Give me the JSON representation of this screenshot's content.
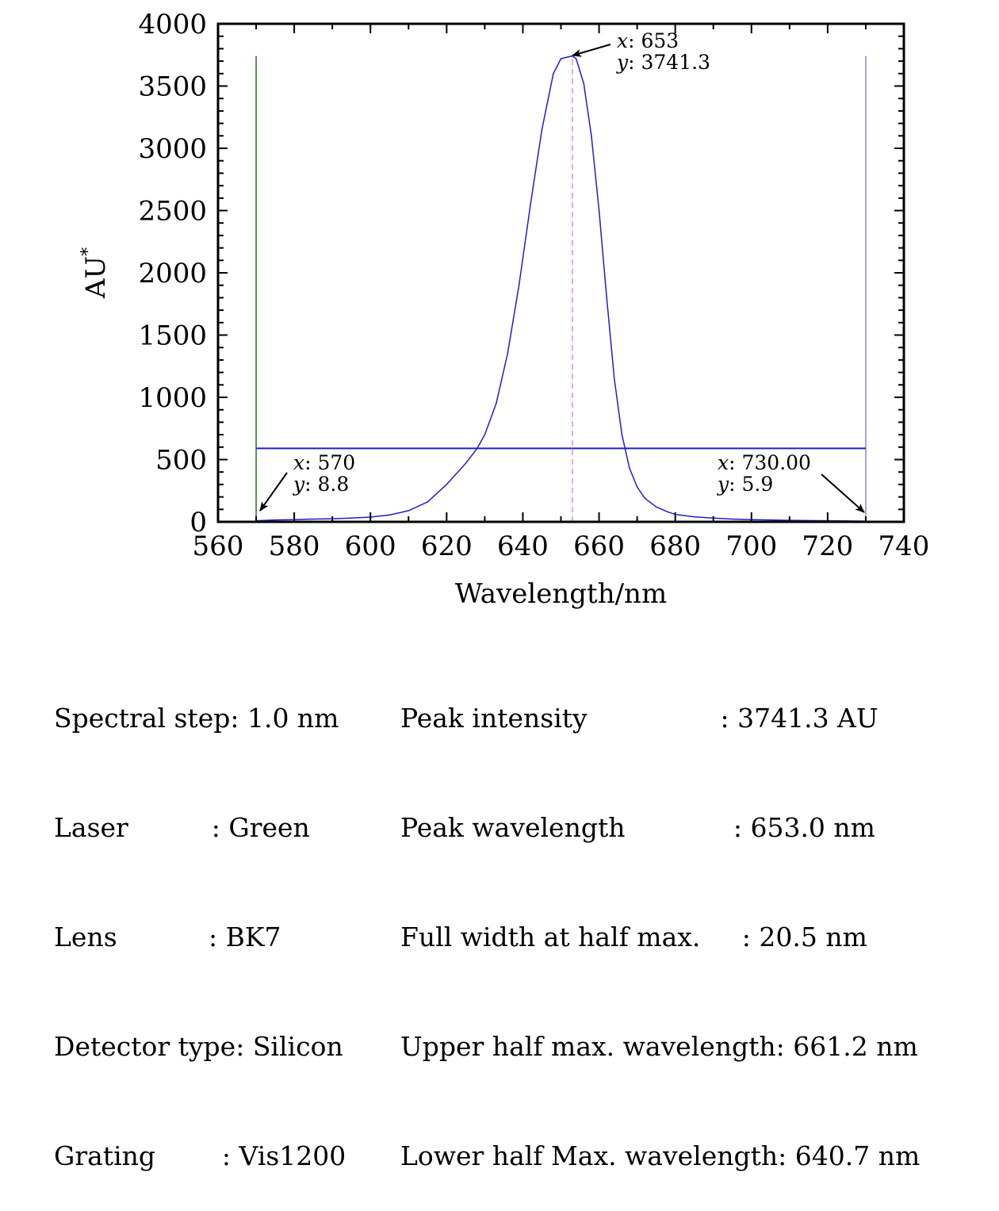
{
  "chart_data": {
    "type": "line",
    "xlabel": "Wavelength/nm",
    "ylabel": "AU*",
    "xlim": [
      560,
      740
    ],
    "ylim": [
      0,
      4000
    ],
    "xticks": [
      560,
      580,
      600,
      620,
      640,
      660,
      680,
      700,
      720,
      740
    ],
    "yticks": [
      0,
      500,
      1000,
      1500,
      2000,
      2500,
      3000,
      3500,
      4000
    ],
    "series": [
      {
        "name": "spectrum",
        "color": "#1f1fc8",
        "x": [
          570,
          575,
          580,
          585,
          590,
          595,
          600,
          605,
          610,
          615,
          620,
          625,
          628,
          630,
          633,
          636,
          639,
          642,
          645,
          648,
          650,
          652,
          653,
          654,
          656,
          658,
          660,
          662,
          664,
          666,
          668,
          670,
          672,
          675,
          678,
          680,
          685,
          690,
          695,
          700,
          705,
          710,
          715,
          720,
          725,
          730
        ],
        "y": [
          8.8,
          15,
          18,
          22,
          25,
          30,
          38,
          55,
          90,
          160,
          300,
          470,
          590,
          700,
          950,
          1350,
          1900,
          2550,
          3150,
          3600,
          3720,
          3735,
          3741.3,
          3720,
          3520,
          3100,
          2500,
          1800,
          1150,
          700,
          430,
          280,
          190,
          120,
          80,
          60,
          40,
          30,
          22,
          18,
          15,
          12,
          10,
          9,
          7,
          5.9
        ]
      }
    ],
    "half_max_line": {
      "y": 590,
      "x_start": 570,
      "x_end": 730,
      "color": "#1f1fc8"
    },
    "left_marker": {
      "x": 570,
      "color": "#1a7a1a"
    },
    "right_marker": {
      "x": 730,
      "color": "#8a8acc"
    },
    "peak_marker": {
      "x": 653,
      "color": "#e08ae0"
    },
    "annotations": [
      {
        "name": "peak",
        "x_label": "653",
        "y_label": "3741.3",
        "at": [
          653,
          3741.3
        ]
      },
      {
        "name": "left",
        "x_label": "570",
        "y_label": "8.8",
        "at": [
          570,
          8.8
        ]
      },
      {
        "name": "right",
        "x_label": "730.00",
        "y_label": "5.9",
        "at": [
          730,
          5.9
        ]
      }
    ]
  },
  "info_left": [
    "Spectral step: 1.0 nm",
    "Laser          : Green",
    "Lens           : BK7",
    "Detector type: Silicon",
    "Grating        : Vis1200"
  ],
  "info_right": [
    "Peak intensity                : 3741.3 AU",
    "Peak wavelength             : 653.0 nm",
    "Full width at half max.     : 20.5 nm",
    "Upper half max. wavelength: 661.2 nm",
    "Lower half Max. wavelength: 640.7 nm"
  ]
}
